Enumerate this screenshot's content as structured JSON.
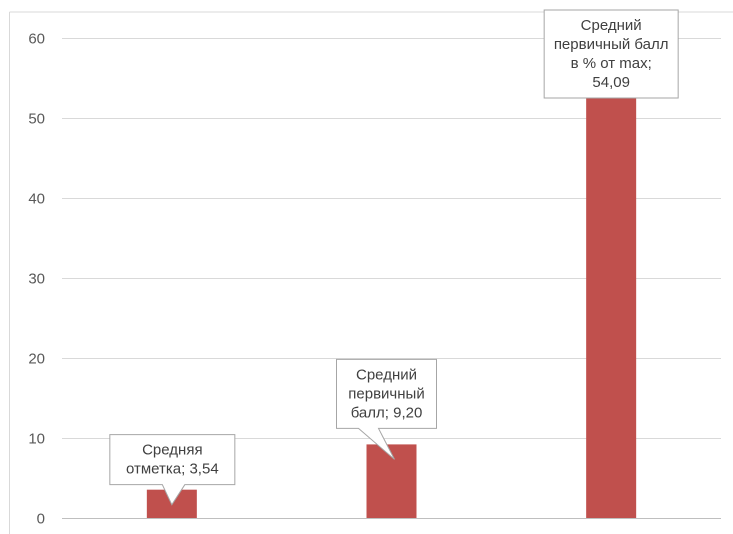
{
  "chart_data": {
    "type": "bar",
    "categories": [
      "",
      "",
      ""
    ],
    "values": [
      3.54,
      9.2,
      54.09
    ],
    "ylim": [
      0,
      60
    ],
    "yticks": [
      0,
      10,
      20,
      30,
      40,
      50,
      60
    ],
    "grid": true,
    "legend": "none",
    "bar_color": "#C0504D",
    "data_labels": [
      [
        "Средняя",
        "отметка; 3,54"
      ],
      [
        "Средний",
        "первичный",
        "балл; 9,20"
      ],
      [
        "Средний",
        "первичный балл",
        "в % от max;",
        "54,09"
      ]
    ]
  }
}
